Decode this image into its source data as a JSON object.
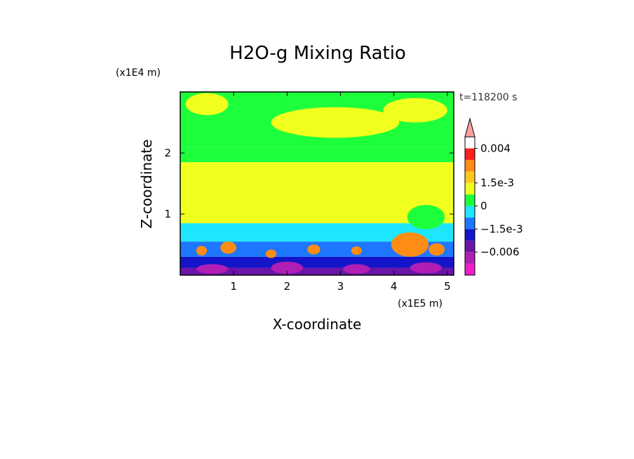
{
  "chart_data": {
    "type": "heatmap",
    "title": "H2O-g Mixing Ratio",
    "xlabel": "X-coordinate",
    "ylabel": "Z-coordinate",
    "x_scale_label": "(x1E5 m)",
    "y_scale_label": "(x1E4 m)",
    "time_label": "t=118200 s",
    "xlim": [
      0,
      5.12
    ],
    "ylim": [
      0,
      3.0
    ],
    "x_ticks": [
      "1",
      "2",
      "3",
      "4",
      "5"
    ],
    "x_tick_values": [
      1,
      2,
      3,
      4,
      5
    ],
    "y_ticks": [
      "1",
      "2"
    ],
    "y_tick_values": [
      1,
      2
    ],
    "colorbar": {
      "levels": [
        -0.009,
        -0.006,
        -0.003,
        -0.0015,
        -0.00075,
        0,
        0.00075,
        0.0015,
        0.002,
        0.003,
        0.004
      ],
      "colors": [
        "#ee1ec8",
        "#b01eb4",
        "#6a14a8",
        "#1414c8",
        "#1e78ff",
        "#1ee6ff",
        "#1eff3c",
        "#f0ff1e",
        "#ffc81e",
        "#ff8c14",
        "#ff1e1e",
        "#ffa0a0"
      ],
      "labels": [
        "0.004",
        "1.5e-3",
        "0",
        "−1.5e-3",
        "−0.006"
      ],
      "label_values": [
        0.004,
        0.0015,
        0,
        -0.0015,
        -0.006
      ],
      "extend": "max"
    },
    "bands": [
      {
        "z": [
          0.0,
          0.12
        ],
        "color": "#6a14a8"
      },
      {
        "z": [
          0.12,
          0.3
        ],
        "color": "#1414c8"
      },
      {
        "z": [
          0.3,
          0.55
        ],
        "color": "#1e78ff"
      },
      {
        "z": [
          0.55,
          0.85
        ],
        "color": "#1ee6ff"
      },
      {
        "z": [
          0.85,
          1.85
        ],
        "color": "#f0ff1e"
      },
      {
        "z": [
          1.85,
          2.1
        ],
        "color": "#1eff3c"
      },
      {
        "z": [
          2.1,
          3.0
        ],
        "color": "#1eff3c"
      }
    ],
    "features": [
      {
        "x": 2.9,
        "z": 2.5,
        "rx": 1.2,
        "rz": 0.25,
        "color": "#f0ff1e"
      },
      {
        "x": 0.5,
        "z": 2.8,
        "rx": 0.4,
        "rz": 0.18,
        "color": "#f0ff1e"
      },
      {
        "x": 4.4,
        "z": 2.7,
        "rx": 0.6,
        "rz": 0.2,
        "color": "#f0ff1e"
      },
      {
        "x": 3.6,
        "z": 1.3,
        "rx": 0.6,
        "rz": 0.35,
        "color": "#f0ff1e"
      },
      {
        "x": 1.3,
        "z": 1.3,
        "rx": 0.7,
        "rz": 0.4,
        "color": "#f0ff1e"
      },
      {
        "x": 4.6,
        "z": 0.95,
        "rx": 0.35,
        "rz": 0.2,
        "color": "#1eff3c"
      },
      {
        "x": 0.4,
        "z": 0.4,
        "rx": 0.1,
        "rz": 0.08,
        "color": "#ff8c14"
      },
      {
        "x": 0.9,
        "z": 0.45,
        "rx": 0.15,
        "rz": 0.1,
        "color": "#ff8c14"
      },
      {
        "x": 1.7,
        "z": 0.35,
        "rx": 0.1,
        "rz": 0.07,
        "color": "#ff8c14"
      },
      {
        "x": 2.5,
        "z": 0.42,
        "rx": 0.12,
        "rz": 0.08,
        "color": "#ff8c14"
      },
      {
        "x": 3.3,
        "z": 0.4,
        "rx": 0.1,
        "rz": 0.07,
        "color": "#ff8c14"
      },
      {
        "x": 4.3,
        "z": 0.5,
        "rx": 0.35,
        "rz": 0.2,
        "color": "#ff8c14"
      },
      {
        "x": 4.8,
        "z": 0.42,
        "rx": 0.15,
        "rz": 0.1,
        "color": "#ff8c14"
      },
      {
        "x": 0.6,
        "z": 0.1,
        "rx": 0.3,
        "rz": 0.08,
        "color": "#b01eb4"
      },
      {
        "x": 2.0,
        "z": 0.12,
        "rx": 0.3,
        "rz": 0.1,
        "color": "#b01eb4"
      },
      {
        "x": 3.3,
        "z": 0.1,
        "rx": 0.25,
        "rz": 0.08,
        "color": "#b01eb4"
      },
      {
        "x": 4.6,
        "z": 0.12,
        "rx": 0.3,
        "rz": 0.09,
        "color": "#b01eb4"
      }
    ]
  }
}
